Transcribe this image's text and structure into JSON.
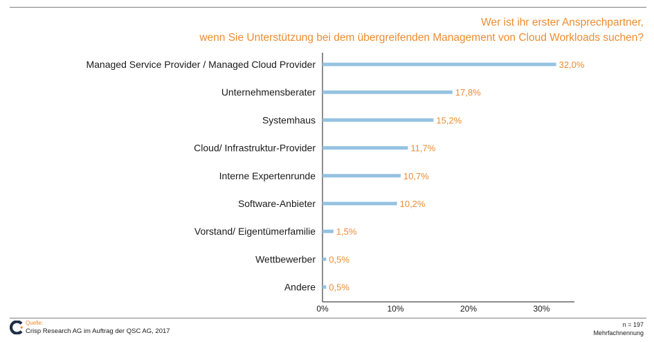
{
  "header": {
    "title_line1": "Wer ist ihr erster Ansprechpartner,",
    "title_line2": "wenn Sie Unterstützung bei dem übergreifenden Management von Cloud Workloads suchen?"
  },
  "colors": {
    "accent": "#ee8c2f",
    "bar": "#95c2e1",
    "axis": "#1a1a1a",
    "rule": "#7f7f7f"
  },
  "chart_data": {
    "type": "bar",
    "orientation": "horizontal",
    "title": "Wer ist ihr erster Ansprechpartner, wenn Sie Unterstützung bei dem übergreifenden Management von Cloud Workloads suchen?",
    "categories": [
      "Managed Service Provider / Managed Cloud Provider",
      "Unternehmensberater",
      "Systemhaus",
      "Cloud/ Infrastruktur-Provider",
      "Interne Expertenrunde",
      "Software-Anbieter",
      "Vorstand/ Eigentümerfamilie",
      "Wettbewerber",
      "Andere"
    ],
    "values": [
      32.0,
      17.8,
      15.2,
      11.7,
      10.7,
      10.2,
      1.5,
      0.5,
      0.5
    ],
    "value_labels": [
      "32,0%",
      "17,8%",
      "15,2%",
      "11,7%",
      "10,7%",
      "10,2%",
      "1,5%",
      "0,5%",
      "0,5%"
    ],
    "xlim": [
      0,
      35
    ],
    "xticks": [
      0,
      10,
      20,
      30
    ],
    "xtick_labels": [
      "0%",
      "10%",
      "20%",
      "30%"
    ],
    "grid": false,
    "legend": "none"
  },
  "footer": {
    "source_label": "Quelle:",
    "source_text": "Crisp Research AG im Auftrag der QSC AG, 2017",
    "n": "n = 197",
    "note": "Mehrfachnennung"
  }
}
